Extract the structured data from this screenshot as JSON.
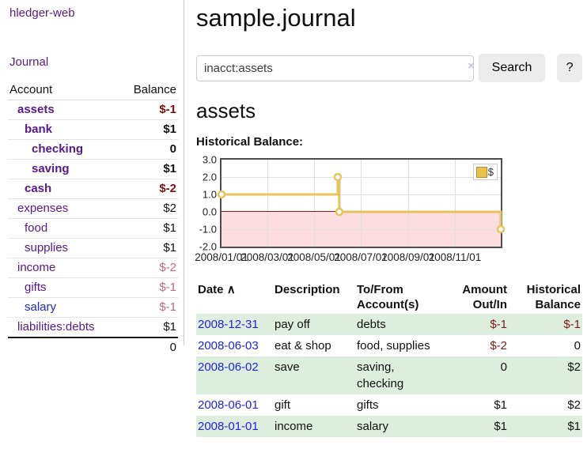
{
  "app": {
    "title": "hledger-web"
  },
  "sidebar": {
    "journal_link": "Journal",
    "table": {
      "account_header": "Account",
      "balance_header": "Balance",
      "rows": [
        {
          "name": "assets",
          "balance": "$-1",
          "indent": 0,
          "bold": true,
          "negative": "strong"
        },
        {
          "name": "bank",
          "balance": "$1",
          "indent": 1,
          "bold": true
        },
        {
          "name": "checking",
          "balance": "0",
          "indent": 2,
          "bold": true
        },
        {
          "name": "saving",
          "balance": "$1",
          "indent": 2,
          "bold": true
        },
        {
          "name": "cash",
          "balance": "$-2",
          "indent": 1,
          "bold": true,
          "negative": "strong"
        },
        {
          "name": "expenses",
          "balance": "$2",
          "indent": 0
        },
        {
          "name": "food",
          "balance": "$1",
          "indent": 1
        },
        {
          "name": "supplies",
          "balance": "$1",
          "indent": 1
        },
        {
          "name": "income",
          "balance": "$-2",
          "indent": 0,
          "negative": "soft"
        },
        {
          "name": "gifts",
          "balance": "$-1",
          "indent": 1,
          "negative": "soft"
        },
        {
          "name": "salary",
          "balance": "$-1",
          "indent": 1,
          "negative": "soft",
          "link_style": "unvisited"
        },
        {
          "name": "liabilities:debts",
          "balance": "$1",
          "indent": 0
        }
      ],
      "total": "0"
    }
  },
  "header": {
    "title": "sample.journal"
  },
  "search": {
    "value": "inacct:assets",
    "clear_icon": "×",
    "button_label": "Search",
    "help_label": "?"
  },
  "main": {
    "account_heading": "assets",
    "chart_label": "Historical Balance:",
    "register": {
      "columns": [
        "Date",
        "Description",
        "To/From Account(s)",
        "Amount Out/In",
        "Historical Balance"
      ],
      "sort_indicator": "∧",
      "rows": [
        {
          "date": "2008-12-31",
          "description": "pay off",
          "accounts": "debts",
          "amount": "$-1",
          "balance": "$-1"
        },
        {
          "date": "2008-06-03",
          "description": "eat & shop",
          "accounts": "food, supplies",
          "amount": "$-2",
          "balance": "0"
        },
        {
          "date": "2008-06-02",
          "description": "save",
          "accounts": "saving, checking",
          "amount": "0",
          "balance": "$2"
        },
        {
          "date": "2008-06-01",
          "description": "gift",
          "accounts": "gifts",
          "amount": "$1",
          "balance": "$2"
        },
        {
          "date": "2008-01-01",
          "description": "income",
          "accounts": "salary",
          "amount": "$1",
          "balance": "$1"
        }
      ]
    }
  },
  "chart_data": {
    "type": "line",
    "step": "after",
    "title": "Historical Balance:",
    "series": [
      {
        "name": "$",
        "points": [
          {
            "date": "2008-01-01",
            "value": 1
          },
          {
            "date": "2008-06-01",
            "value": 2
          },
          {
            "date": "2008-06-03",
            "value": 0
          },
          {
            "date": "2008-12-31",
            "value": -1
          }
        ]
      }
    ],
    "x_range": [
      "2008-01-01",
      "2008-12-31"
    ],
    "ylim": [
      -2,
      3
    ],
    "y_ticks": [
      3.0,
      2.0,
      1.0,
      0.0,
      -1.0,
      -2.0
    ],
    "x_ticks": [
      {
        "label": "2008/01/01",
        "date": "2008-01-01"
      },
      {
        "label": "2008/03/01",
        "date": "2008-03-01"
      },
      {
        "label": "2008/05/01",
        "date": "2008-05-01"
      },
      {
        "label": "2008/07/01",
        "date": "2008-07-01"
      },
      {
        "label": "2008/09/01",
        "date": "2008-09-01"
      },
      {
        "label": "2008/11/01",
        "date": "2008-11-01"
      }
    ],
    "legend": {
      "label": "$",
      "position": "top-right"
    },
    "grid": true
  },
  "colors": {
    "link_visited_purple": "#551a8b",
    "link_blue": "#2222dd",
    "negative_strong": "#7e1010",
    "negative_soft": "#c06a78",
    "table_negative": "#801919",
    "row_green": "#deeede",
    "chart_line_gold": "#e6c35c",
    "chart_negative_zone": "#fcdde0",
    "chart_zero_line": "#8b1a1a",
    "button_gray": "#ececec"
  }
}
